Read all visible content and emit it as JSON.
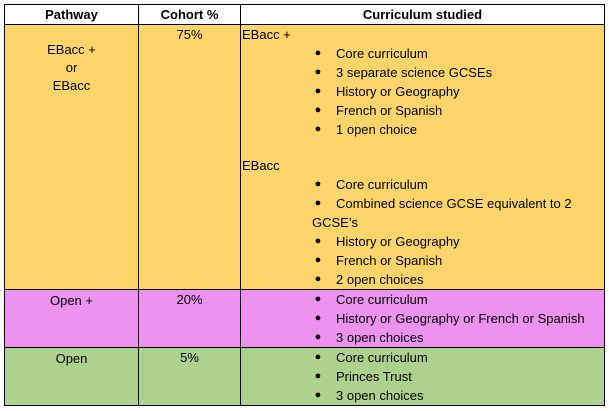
{
  "table": {
    "headers": [
      "Pathway",
      "Cohort %",
      "Curriculum studied"
    ],
    "rows": [
      {
        "pathway_lines": [
          "EBacc +",
          "or",
          "EBacc"
        ],
        "cohort": "75%",
        "groups": [
          {
            "label": "EBacc +",
            "items": [
              "Core curriculum",
              "3 separate science GCSEs",
              "History or Geography",
              "French or Spanish",
              "1 open choice"
            ]
          },
          {
            "label": "EBacc",
            "items": [
              "Core curriculum",
              "Combined science GCSE equivalent to 2",
              "History or Geography",
              "French or Spanish",
              "2 open choices"
            ],
            "wrap_continuation": "GCSE’s"
          }
        ]
      },
      {
        "pathway_lines": [
          "Open +"
        ],
        "cohort": "20%",
        "items": [
          "Core curriculum",
          "History or Geography or French or Spanish",
          "3 open choices"
        ]
      },
      {
        "pathway_lines": [
          "Open"
        ],
        "cohort": "5%",
        "items": [
          "Core curriculum",
          "Princes Trust",
          "3 open choices"
        ]
      }
    ]
  },
  "bullet_glyph": "●",
  "colors": {
    "ebacc_row": "#fdd56a",
    "open_plus_row": "#eb93ef",
    "open_row": "#acd28d"
  }
}
